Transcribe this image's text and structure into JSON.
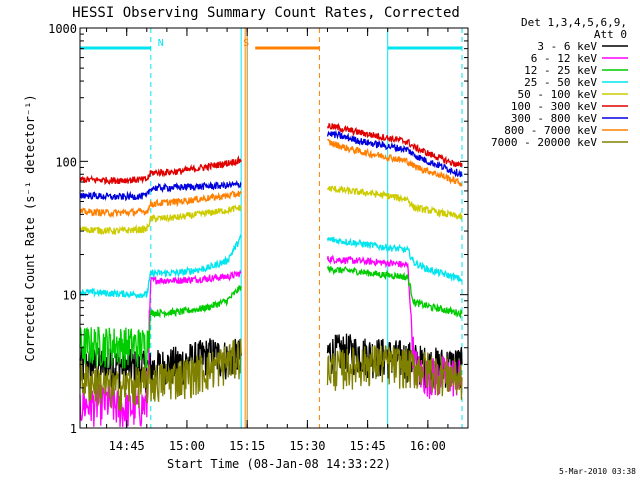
{
  "chart_data": {
    "type": "line",
    "title": "HESSI Observing Summary Count Rates, Corrected",
    "xlabel": "Start Time (08-Jan-08 14:33:22)",
    "ylabel": "Corrected Count Rate (s⁻¹ detector⁻¹)",
    "ylog": true,
    "ylim": [
      1,
      1000
    ],
    "xlim": [
      "14:33:22",
      "16:10:00"
    ],
    "x_tick_labels": [
      "14:45",
      "15:00",
      "15:15",
      "15:30",
      "15:45",
      "16:00"
    ],
    "y_tick_labels": [
      "1",
      "10",
      "100",
      "1000"
    ],
    "grid": false,
    "legend_position": "outside-right",
    "legend_header": [
      "Det 1,3,4,5,6,9,",
      "Att 0"
    ],
    "timestamp": "5-Mar-2010 03:38",
    "flags": [
      {
        "label": "N",
        "color": "#00e5ee",
        "segments": [
          [
            "14:33:22",
            "14:51:00"
          ],
          [
            "15:50:00",
            "16:08:30"
          ]
        ]
      },
      {
        "label": "S",
        "color": "#ff8000",
        "segments": [
          [
            "15:17:00",
            "15:33:00"
          ]
        ]
      }
    ],
    "markers": [
      {
        "time": "14:51:00",
        "color": "#00e5ee",
        "style": "dashed"
      },
      {
        "time": "15:13:30",
        "color": "#00e5ee",
        "style": "solid"
      },
      {
        "time": "15:14:30",
        "color": "#ff8000",
        "style": "solid"
      },
      {
        "time": "15:15:00",
        "color": "#b8860b",
        "style": "solid"
      },
      {
        "time": "15:33:00",
        "color": "#ff8000",
        "style": "dashed"
      },
      {
        "time": "15:50:00",
        "color": "#00e5ee",
        "style": "solid"
      },
      {
        "time": "16:08:30",
        "color": "#00e5ee",
        "style": "dashed"
      }
    ],
    "series": [
      {
        "name": "3 - 6 keV",
        "color": "#000000",
        "segments": [
          [
            [
              "14:33:22",
              3.0
            ],
            [
              "14:42:00",
              3.0
            ],
            [
              "14:50:00",
              2.8
            ],
            [
              "14:56:00",
              3.0
            ],
            [
              "15:02:00",
              3.3
            ],
            [
              "15:06:00",
              3.6
            ],
            [
              "15:09:00",
              3.4
            ],
            [
              "15:13:30",
              3.5
            ]
          ],
          [
            [
              "15:35:00",
              3.7
            ],
            [
              "15:40:00",
              3.8
            ],
            [
              "15:45:00",
              3.6
            ],
            [
              "15:50:00",
              3.5
            ],
            [
              "15:53:00",
              3.4
            ],
            [
              "15:56:00",
              3.3
            ],
            [
              "16:00:00",
              3.0
            ],
            [
              "16:04:00",
              3.0
            ],
            [
              "16:08:30",
              3.0
            ]
          ]
        ]
      },
      {
        "name": "6 - 12 keV",
        "color": "#ff00ff",
        "segments": [
          [
            [
              "14:33:22",
              1.5
            ],
            [
              "14:40:00",
              1.6
            ],
            [
              "14:44:00",
              1.4
            ],
            [
              "14:50:00",
              1.5
            ],
            [
              "14:51:00",
              12.8
            ],
            [
              "14:58:00",
              12.8
            ],
            [
              "15:05:00",
              13.2
            ],
            [
              "15:11:00",
              13.8
            ],
            [
              "15:13:30",
              14.5
            ]
          ],
          [
            [
              "15:35:00",
              18.5
            ],
            [
              "15:42:00",
              18.0
            ],
            [
              "15:48:00",
              17.5
            ],
            [
              "15:53:00",
              17.0
            ],
            [
              "15:55:00",
              16.5
            ],
            [
              "15:56:30",
              3.2
            ],
            [
              "15:58:00",
              2.6
            ],
            [
              "16:02:00",
              2.5
            ],
            [
              "16:05:00",
              2.6
            ],
            [
              "16:08:30",
              2.4
            ]
          ]
        ]
      },
      {
        "name": "12 - 25 keV",
        "color": "#00cc00",
        "segments": [
          [
            [
              "14:33:22",
              4.3
            ],
            [
              "14:42:00",
              4.3
            ],
            [
              "14:50:00",
              4.2
            ],
            [
              "14:51:00",
              7.3
            ],
            [
              "14:58:00",
              7.4
            ],
            [
              "15:05:00",
              8.0
            ],
            [
              "15:10:00",
              9.0
            ],
            [
              "15:13:30",
              11.5
            ]
          ],
          [
            [
              "15:35:00",
              15.5
            ],
            [
              "15:42:00",
              15.0
            ],
            [
              "15:48:00",
              14.2
            ],
            [
              "15:53:00",
              13.8
            ],
            [
              "15:55:00",
              13.5
            ],
            [
              "15:56:30",
              8.8
            ],
            [
              "16:00:00",
              8.2
            ],
            [
              "16:05:00",
              7.6
            ],
            [
              "16:08:30",
              7.2
            ]
          ]
        ]
      },
      {
        "name": "25 - 50 keV",
        "color": "#00e5ee",
        "segments": [
          [
            [
              "14:33:22",
              10.5
            ],
            [
              "14:42:00",
              10.2
            ],
            [
              "14:50:00",
              10.0
            ],
            [
              "14:51:00",
              14.5
            ],
            [
              "14:58:00",
              14.6
            ],
            [
              "15:05:00",
              15.8
            ],
            [
              "15:10:00",
              18.0
            ],
            [
              "15:13:30",
              27.0
            ]
          ],
          [
            [
              "15:35:00",
              26.0
            ],
            [
              "15:42:00",
              24.5
            ],
            [
              "15:48:00",
              23.0
            ],
            [
              "15:53:00",
              22.0
            ],
            [
              "15:55:00",
              21.5
            ],
            [
              "15:56:30",
              17.5
            ],
            [
              "16:00:00",
              15.5
            ],
            [
              "16:05:00",
              14.0
            ],
            [
              "16:08:30",
              13.0
            ]
          ]
        ]
      },
      {
        "name": "50 - 100 keV",
        "color": "#cccc00",
        "segments": [
          [
            [
              "14:33:22",
              31
            ],
            [
              "14:42:00",
              30
            ],
            [
              "14:50:00",
              31
            ],
            [
              "14:51:00",
              37
            ],
            [
              "14:58:00",
              38
            ],
            [
              "15:05:00",
              41
            ],
            [
              "15:10:00",
              43
            ],
            [
              "15:13:30",
              45
            ]
          ],
          [
            [
              "15:35:00",
              63
            ],
            [
              "15:40:00",
              60
            ],
            [
              "15:45:00",
              58
            ],
            [
              "15:50:00",
              55
            ],
            [
              "15:55:00",
              52
            ],
            [
              "15:56:30",
              45
            ],
            [
              "16:00:00",
              43
            ],
            [
              "16:05:00",
              40
            ],
            [
              "16:08:30",
              38
            ]
          ]
        ]
      },
      {
        "name": "100 - 300 keV",
        "color": "#e00000",
        "segments": [
          [
            [
              "14:33:22",
              73
            ],
            [
              "14:42:00",
              72
            ],
            [
              "14:50:00",
              73
            ],
            [
              "14:51:00",
              82
            ],
            [
              "14:58:00",
              84
            ],
            [
              "15:05:00",
              91
            ],
            [
              "15:10:00",
              97
            ],
            [
              "15:13:30",
              102
            ]
          ],
          [
            [
              "15:35:00",
              185
            ],
            [
              "15:40:00",
              172
            ],
            [
              "15:45:00",
              160
            ],
            [
              "15:50:00",
              150
            ],
            [
              "15:55:00",
              140
            ],
            [
              "15:56:30",
              128
            ],
            [
              "16:00:00",
              115
            ],
            [
              "16:05:00",
              100
            ],
            [
              "16:08:30",
              92
            ]
          ]
        ]
      },
      {
        "name": "300 - 800 keV",
        "color": "#0000dd",
        "segments": [
          [
            [
              "14:33:22",
              56
            ],
            [
              "14:42:00",
              54
            ],
            [
              "14:50:00",
              55
            ],
            [
              "14:51:00",
              63
            ],
            [
              "14:58:00",
              64
            ],
            [
              "15:05:00",
              65
            ],
            [
              "15:10:00",
              66
            ],
            [
              "15:13:30",
              67
            ]
          ],
          [
            [
              "15:35:00",
              163
            ],
            [
              "15:40:00",
              150
            ],
            [
              "15:45:00",
              138
            ],
            [
              "15:50:00",
              130
            ],
            [
              "15:55:00",
              122
            ],
            [
              "15:56:30",
              112
            ],
            [
              "16:00:00",
              100
            ],
            [
              "16:05:00",
              88
            ],
            [
              "16:08:30",
              80
            ]
          ]
        ]
      },
      {
        "name": "800 - 7000 keV",
        "color": "#ff8000",
        "segments": [
          [
            [
              "14:33:22",
              42
            ],
            [
              "14:42:00",
              41
            ],
            [
              "14:50:00",
              42
            ],
            [
              "14:51:00",
              48
            ],
            [
              "14:58:00",
              50
            ],
            [
              "15:05:00",
              53
            ],
            [
              "15:10:00",
              55
            ],
            [
              "15:13:30",
              58
            ]
          ],
          [
            [
              "15:35:00",
              140
            ],
            [
              "15:40:00",
              125
            ],
            [
              "15:45:00",
              115
            ],
            [
              "15:50:00",
              108
            ],
            [
              "15:55:00",
              100
            ],
            [
              "15:56:30",
              92
            ],
            [
              "16:00:00",
              85
            ],
            [
              "16:05:00",
              75
            ],
            [
              "16:08:30",
              68
            ]
          ]
        ]
      },
      {
        "name": "7000 - 20000 keV",
        "color": "#808000",
        "segments": [
          [
            [
              "14:33:22",
              2.4
            ],
            [
              "14:42:00",
              2.0
            ],
            [
              "14:50:00",
              2.2
            ],
            [
              "14:56:00",
              2.4
            ],
            [
              "15:02:00",
              2.6
            ],
            [
              "15:08:00",
              3.0
            ],
            [
              "15:13:30",
              3.6
            ]
          ],
          [
            [
              "15:35:00",
              2.8
            ],
            [
              "15:42:00",
              3.0
            ],
            [
              "15:48:00",
              3.2
            ],
            [
              "15:53:00",
              3.0
            ],
            [
              "15:56:00",
              2.9
            ],
            [
              "16:00:00",
              2.8
            ],
            [
              "16:04:00",
              2.6
            ],
            [
              "16:08:30",
              2.4
            ]
          ]
        ]
      }
    ]
  }
}
